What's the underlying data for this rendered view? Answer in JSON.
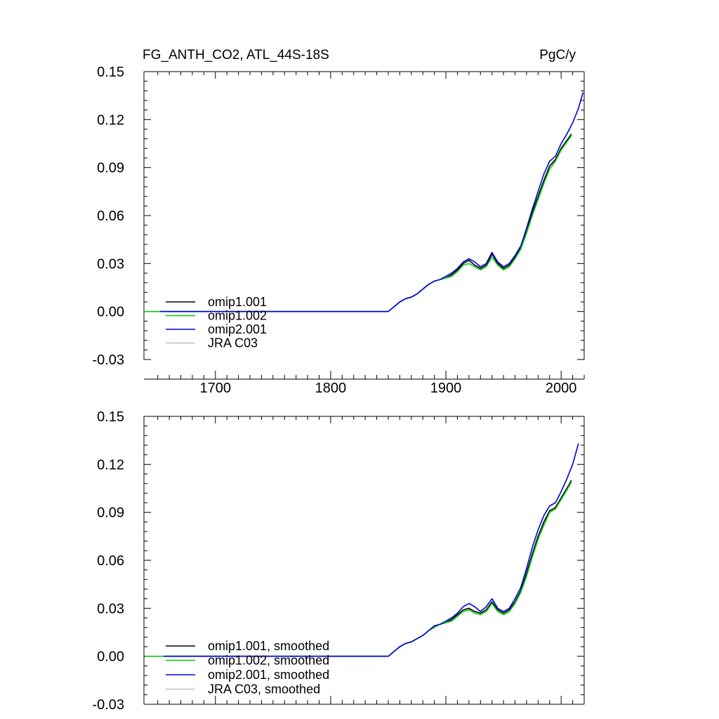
{
  "chart_data": [
    {
      "type": "line",
      "title": "FG_ANTH_CO2, ATL_44S-18S",
      "units": "PgC/y",
      "xlim": [
        1638,
        2020
      ],
      "ylim": [
        -0.03,
        0.15
      ],
      "yticks": [
        "-0.03",
        "0.00",
        "0.03",
        "0.06",
        "0.09",
        "0.12",
        "0.15"
      ],
      "xticks": [
        "1700",
        "1800",
        "1900",
        "2000"
      ],
      "grid": false,
      "legend_position": "bottom-left",
      "series": [
        {
          "name": "omip1.001",
          "color": "#000000",
          "x": [
            1652,
            1850,
            1855,
            1860,
            1865,
            1870,
            1875,
            1880,
            1885,
            1890,
            1895,
            1900,
            1905,
            1910,
            1915,
            1920,
            1925,
            1930,
            1935,
            1940,
            1945,
            1950,
            1955,
            1960,
            1965,
            1970,
            1975,
            1980,
            1985,
            1990,
            1995,
            2000,
            2005,
            2009
          ],
          "y": [
            0.0,
            0.0,
            0.003,
            0.006,
            0.008,
            0.009,
            0.011,
            0.014,
            0.017,
            0.019,
            0.02,
            0.021,
            0.023,
            0.026,
            0.03,
            0.032,
            0.029,
            0.027,
            0.029,
            0.036,
            0.03,
            0.027,
            0.029,
            0.034,
            0.04,
            0.05,
            0.062,
            0.072,
            0.082,
            0.091,
            0.095,
            0.102,
            0.107,
            0.111
          ]
        },
        {
          "name": "omip1.002",
          "color": "#00cc00",
          "x": [
            1638,
            1850,
            1855,
            1860,
            1865,
            1870,
            1875,
            1880,
            1885,
            1890,
            1895,
            1900,
            1905,
            1910,
            1915,
            1920,
            1925,
            1930,
            1935,
            1940,
            1945,
            1950,
            1955,
            1960,
            1965,
            1970,
            1975,
            1980,
            1985,
            1990,
            1995,
            2000,
            2005,
            2009
          ],
          "y": [
            0.0,
            0.0,
            0.003,
            0.006,
            0.008,
            0.009,
            0.011,
            0.014,
            0.017,
            0.019,
            0.02,
            0.021,
            0.022,
            0.025,
            0.029,
            0.03,
            0.028,
            0.026,
            0.028,
            0.034,
            0.029,
            0.026,
            0.028,
            0.033,
            0.039,
            0.049,
            0.06,
            0.07,
            0.08,
            0.089,
            0.094,
            0.101,
            0.106,
            0.11
          ]
        },
        {
          "name": "omip2.001",
          "color": "#0000dd",
          "x": [
            1652,
            1850,
            1855,
            1860,
            1865,
            1870,
            1875,
            1880,
            1885,
            1890,
            1895,
            1900,
            1905,
            1910,
            1915,
            1920,
            1925,
            1930,
            1935,
            1940,
            1945,
            1950,
            1955,
            1960,
            1965,
            1970,
            1975,
            1980,
            1985,
            1990,
            1995,
            2000,
            2005,
            2010,
            2015,
            2019
          ],
          "y": [
            0.0,
            0.0,
            0.003,
            0.006,
            0.008,
            0.009,
            0.011,
            0.014,
            0.017,
            0.019,
            0.02,
            0.022,
            0.024,
            0.027,
            0.031,
            0.033,
            0.031,
            0.028,
            0.03,
            0.037,
            0.031,
            0.028,
            0.03,
            0.035,
            0.041,
            0.052,
            0.064,
            0.075,
            0.086,
            0.094,
            0.097,
            0.105,
            0.111,
            0.118,
            0.127,
            0.137
          ]
        },
        {
          "name": "JRA C03",
          "color": "#c0c0c0",
          "x": [],
          "y": []
        }
      ]
    },
    {
      "type": "line",
      "title": "",
      "xlim": [
        1638,
        2020
      ],
      "ylim": [
        -0.03,
        0.15
      ],
      "yticks": [
        "-0.03",
        "0.00",
        "0.03",
        "0.06",
        "0.09",
        "0.12",
        "0.15"
      ],
      "grid": false,
      "legend_position": "bottom-left",
      "series": [
        {
          "name": "omip1.001, smoothed",
          "color": "#000000",
          "x": [
            1655,
            1850,
            1855,
            1860,
            1865,
            1870,
            1875,
            1880,
            1885,
            1890,
            1895,
            1900,
            1905,
            1910,
            1915,
            1920,
            1925,
            1930,
            1935,
            1940,
            1945,
            1950,
            1955,
            1960,
            1965,
            1970,
            1975,
            1980,
            1985,
            1990,
            1995,
            2000,
            2005,
            2009
          ],
          "y": [
            0.0,
            0.0,
            0.003,
            0.006,
            0.008,
            0.009,
            0.011,
            0.013,
            0.016,
            0.019,
            0.02,
            0.021,
            0.023,
            0.026,
            0.029,
            0.03,
            0.028,
            0.027,
            0.029,
            0.034,
            0.029,
            0.027,
            0.029,
            0.034,
            0.041,
            0.052,
            0.064,
            0.075,
            0.084,
            0.091,
            0.093,
            0.099,
            0.105,
            0.11
          ]
        },
        {
          "name": "omip1.002, smoothed",
          "color": "#00cc00",
          "x": [
            1640,
            1850,
            1855,
            1860,
            1865,
            1870,
            1875,
            1880,
            1885,
            1890,
            1895,
            1900,
            1905,
            1910,
            1915,
            1920,
            1925,
            1930,
            1935,
            1940,
            1945,
            1950,
            1955,
            1960,
            1965,
            1970,
            1975,
            1980,
            1985,
            1990,
            1995,
            2000,
            2005,
            2009
          ],
          "y": [
            0.0,
            0.0,
            0.003,
            0.006,
            0.008,
            0.009,
            0.011,
            0.013,
            0.016,
            0.018,
            0.02,
            0.021,
            0.022,
            0.025,
            0.028,
            0.029,
            0.027,
            0.026,
            0.028,
            0.033,
            0.028,
            0.026,
            0.028,
            0.033,
            0.04,
            0.05,
            0.062,
            0.073,
            0.082,
            0.09,
            0.092,
            0.098,
            0.104,
            0.109
          ]
        },
        {
          "name": "omip2.001, smoothed",
          "color": "#0000dd",
          "x": [
            1655,
            1850,
            1855,
            1860,
            1865,
            1870,
            1875,
            1880,
            1885,
            1890,
            1895,
            1900,
            1905,
            1910,
            1915,
            1920,
            1925,
            1930,
            1935,
            1940,
            1945,
            1950,
            1955,
            1960,
            1965,
            1970,
            1975,
            1980,
            1985,
            1990,
            1995,
            2000,
            2005,
            2010,
            2015
          ],
          "y": [
            0.0,
            0.0,
            0.003,
            0.006,
            0.008,
            0.009,
            0.011,
            0.013,
            0.016,
            0.019,
            0.02,
            0.022,
            0.024,
            0.027,
            0.031,
            0.033,
            0.031,
            0.028,
            0.031,
            0.036,
            0.03,
            0.028,
            0.03,
            0.036,
            0.043,
            0.055,
            0.068,
            0.079,
            0.088,
            0.094,
            0.096,
            0.103,
            0.111,
            0.12,
            0.133
          ]
        },
        {
          "name": "JRA C03, smoothed",
          "color": "#c0c0c0",
          "x": [],
          "y": []
        }
      ]
    }
  ]
}
